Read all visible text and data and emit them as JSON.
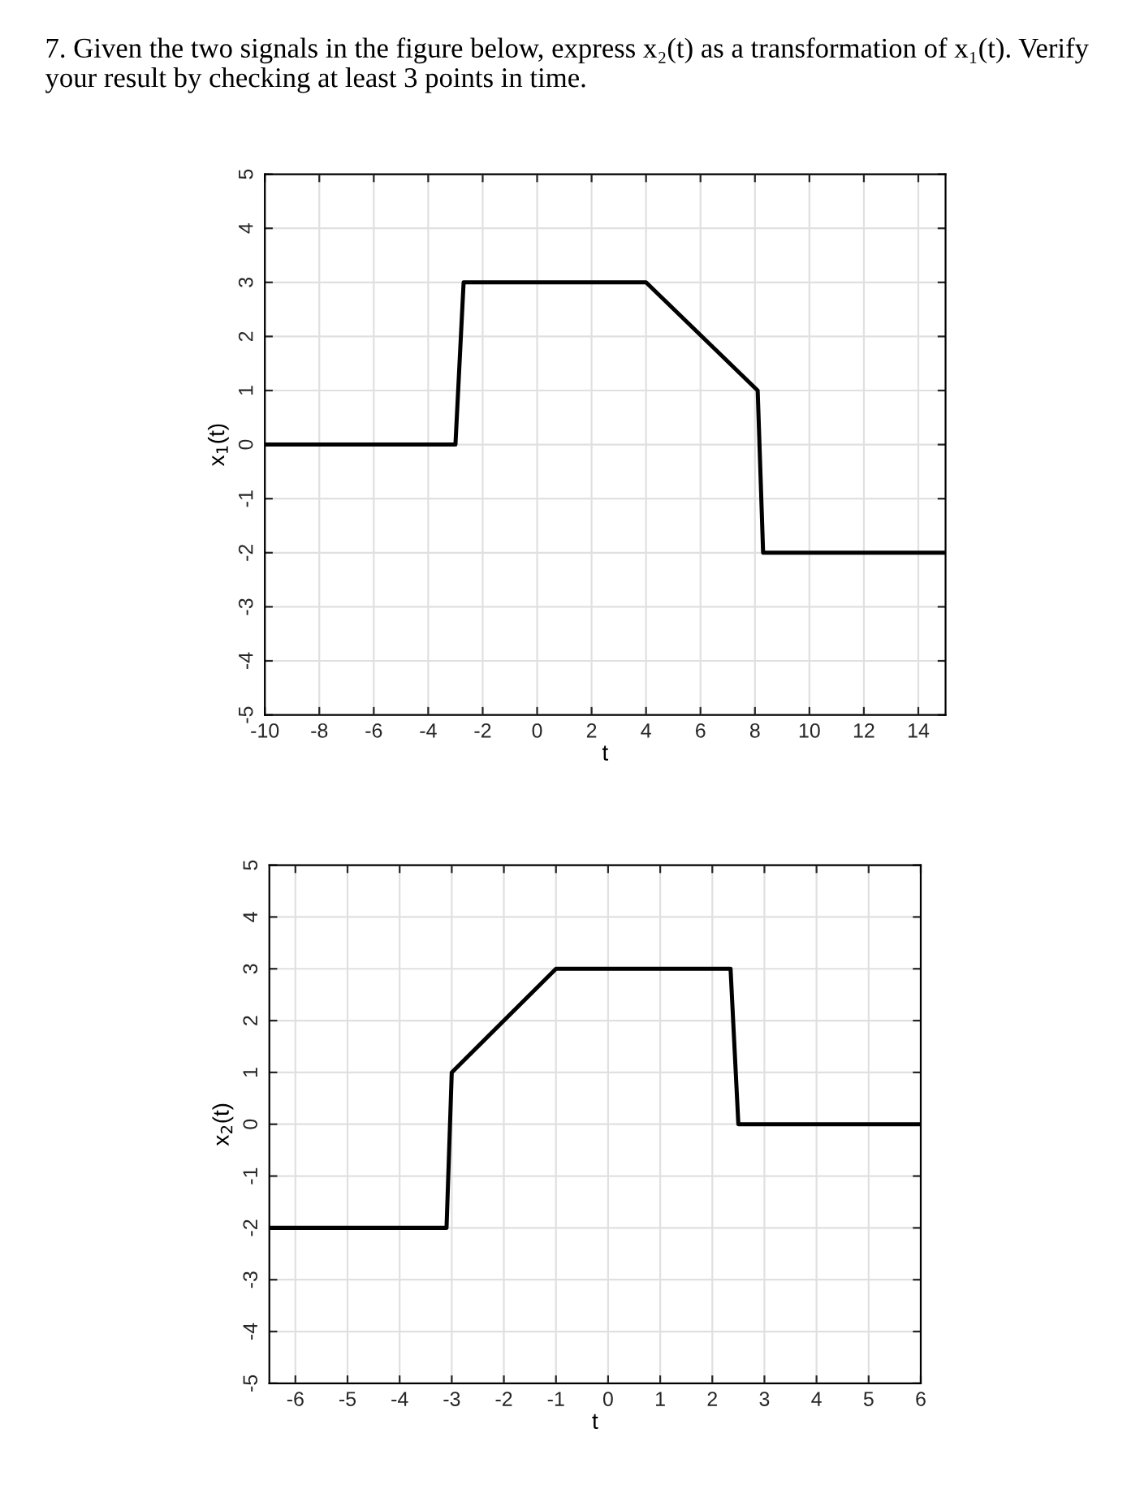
{
  "chart_data": [
    {
      "type": "line",
      "title": "7. Given the two signals in the figure below, express x₂(t) as a transformation of x₁(t). Verify your result by checking at least 3 points in time.",
      "xlabel": "t",
      "ylabel": "x$_{1}$(t)",
      "series": [
        {
          "color": "#000000",
          "x": [
            -10,
            -3,
            -2.7,
            4,
            8.1,
            8.3,
            15
          ],
          "values": [
            0,
            0,
            3,
            3,
            1,
            -2,
            -2
          ]
        }
      ],
      "xlim": [
        -10,
        15
      ],
      "xticks": [
        -10,
        -8,
        -6,
        -4,
        -2,
        0,
        2,
        4,
        6,
        8,
        10,
        12,
        14
      ],
      "ylim": [
        -5,
        5
      ],
      "yticks": [
        -5,
        -4,
        -3,
        -2,
        -1,
        0,
        1,
        2,
        3,
        4,
        5
      ],
      "grid": true
    },
    {
      "type": "line",
      "xlabel": "t",
      "ylabel": "x$_{2}$(t)",
      "series": [
        {
          "color": "#000000",
          "x": [
            -6.5,
            -3.1,
            -3,
            -1,
            2.35,
            2.5,
            6
          ],
          "values": [
            -2,
            -2,
            1,
            3,
            3,
            0,
            0
          ]
        }
      ],
      "xlim": [
        -6.5,
        6
      ],
      "xticks": [
        -6,
        -5,
        -4,
        -3,
        -2,
        -1,
        0,
        1,
        2,
        3,
        4,
        5,
        6
      ],
      "ylim": [
        -5,
        5
      ],
      "yticks": [
        -5,
        -4,
        -3,
        -2,
        -1,
        0,
        1,
        2,
        3,
        4,
        5
      ],
      "grid": true
    }
  ]
}
